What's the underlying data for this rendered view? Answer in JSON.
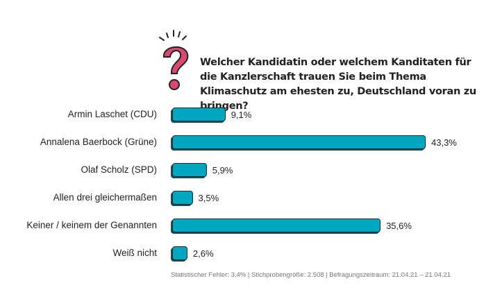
{
  "chart_data": {
    "type": "bar",
    "orientation": "horizontal",
    "title": "Welcher Kandidatin oder welchem Kanditaten für die Kanzlerschaft trauen Sie beim Thema Klimaschutz am ehesten zu, Deutschland voran zu bringen?",
    "categories": [
      "Armin Laschet (CDU)",
      "Annalena Baerbock (Grüne)",
      "Olaf Scholz (SPD)",
      "Allen drei gleichermaßen",
      "Keiner / keinem der Genannten",
      "Weiß nicht"
    ],
    "values": [
      9.1,
      43.3,
      5.9,
      3.5,
      35.6,
      2.6
    ],
    "value_labels": [
      "9,1%",
      "43,3%",
      "5,9%",
      "3,5%",
      "35,6%",
      "2,6%"
    ],
    "xlim": [
      0,
      43.3
    ],
    "bar_color": "#00a5c0",
    "footer": "Statistischer Fehler: 3,4% | Stichprobengröße: 2.508 | Befragungszeitraum: 21.04.21 – 21.04.21"
  }
}
